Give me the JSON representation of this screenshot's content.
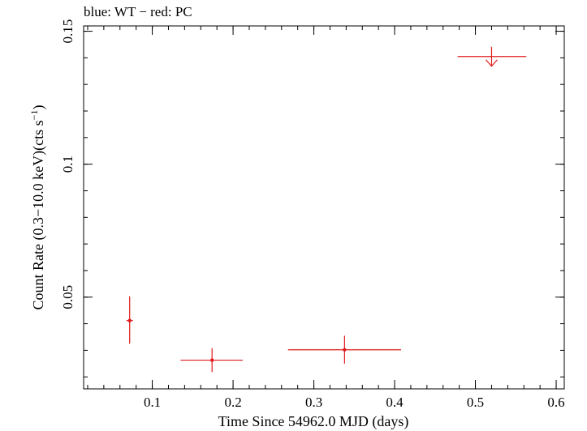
{
  "chart_data": {
    "type": "scatter",
    "title": "blue: WT − red: PC",
    "xlabel": "Time Since 54962.0 MJD (days)",
    "ylabel_main": "Count Rate (0.3−10.0 keV)(cts s",
    "ylabel_sup": "−1",
    "ylabel_end": ")",
    "xlim": [
      0.015,
      0.61
    ],
    "ylim": [
      0.0155,
      0.152
    ],
    "x_ticks": [
      {
        "value": 0.1,
        "label": "0.1"
      },
      {
        "value": 0.2,
        "label": "0.2"
      },
      {
        "value": 0.3,
        "label": "0.3"
      },
      {
        "value": 0.4,
        "label": "0.4"
      },
      {
        "value": 0.5,
        "label": "0.5"
      },
      {
        "value": 0.6,
        "label": "0.6"
      }
    ],
    "y_ticks": [
      {
        "value": 0.05,
        "label": "0.05"
      },
      {
        "value": 0.1,
        "label": "0.1"
      },
      {
        "value": 0.15,
        "label": "0.15"
      }
    ],
    "series": [
      {
        "mode": "PC",
        "color": "#e31a1c",
        "points": [
          {
            "x": 0.072,
            "xerr_lo": 0.004,
            "xerr_hi": 0.004,
            "y": 0.0412,
            "yerr_lo": 0.0087,
            "yerr_hi": 0.0091
          },
          {
            "x": 0.174,
            "xerr_lo": 0.039,
            "xerr_hi": 0.038,
            "y": 0.0263,
            "yerr_lo": 0.0045,
            "yerr_hi": 0.0045
          },
          {
            "x": 0.338,
            "xerr_lo": 0.07,
            "xerr_hi": 0.07,
            "y": 0.0302,
            "yerr_lo": 0.0052,
            "yerr_hi": 0.0053
          }
        ],
        "upper_limits": [
          {
            "x": 0.52,
            "xerr_lo": 0.042,
            "xerr_hi": 0.043,
            "y": 0.1405
          }
        ]
      }
    ]
  }
}
